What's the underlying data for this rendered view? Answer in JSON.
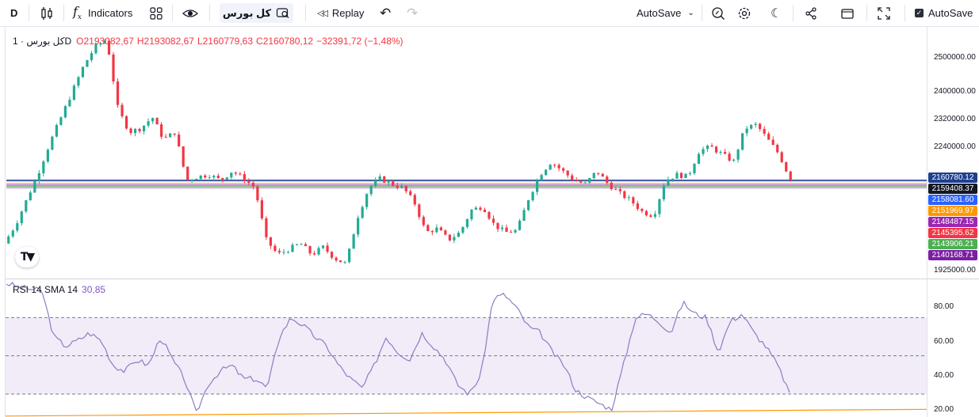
{
  "toolbar": {
    "interval": "D",
    "indicators_label": "Indicators",
    "symbol": "کل بورس",
    "replay_label": "Replay",
    "autosave_dropdown_label": "AutoSave",
    "autosave_checkbox_label": "AutoSave",
    "autosave_checked": true
  },
  "legend": {
    "symbol_interval": "کل بورس · 1D",
    "open": "O2193082,67",
    "high": "H2193082,67",
    "low": "L2160779,63",
    "close": "C2160780,12",
    "change": "−32391,72 (−1,48%)"
  },
  "rsi_legend": {
    "name": "RSI 14 SMA 14",
    "value": "30,85"
  },
  "price_axis": {
    "labels": [
      "2500000.00",
      "2400000.00",
      "2320000.00",
      "2240000.00",
      "1925000.00"
    ]
  },
  "price_tags": [
    {
      "value": "2160780.12",
      "color": "#1e3f8f"
    },
    {
      "value": "2159408.37",
      "color": "#131722"
    },
    {
      "value": "2158081.60",
      "color": "#2962ff"
    },
    {
      "value": "2151969.97",
      "color": "#ff9800"
    },
    {
      "value": "2148487.15",
      "color": "#9c27b0"
    },
    {
      "value": "2145395.62",
      "color": "#f23645"
    },
    {
      "value": "2143906.21",
      "color": "#4caf50"
    },
    {
      "value": "2140168.71",
      "color": "#7b1fa2"
    }
  ],
  "rsi_axis": {
    "labels": [
      "80.00",
      "60.00",
      "40.00",
      "20.00"
    ]
  },
  "colors": {
    "up": "#22ab94",
    "down": "#f23645",
    "rsi_line": "#8e7cc3",
    "rsi_band": "#ede7f6",
    "sma_line": "#ff9800"
  },
  "chart_data": [
    {
      "type": "candlestick",
      "title": "کل بورس · 1D",
      "ylim": [
        1900000,
        2560000
      ],
      "levels": [
        2160780.12,
        2159408.37,
        2158081.6,
        2151969.97,
        2148487.15,
        2145395.62,
        2143906.21,
        2140168.71
      ],
      "close_path": [
        1990000,
        2040000,
        2110000,
        2180000,
        2260000,
        2330000,
        2400000,
        2470000,
        2520000,
        2540000,
        2350000,
        2290000,
        2300000,
        2330000,
        2270000,
        2290000,
        2160000,
        2170000,
        2175000,
        2160000,
        2185000,
        2165000,
        2140000,
        2000000,
        1960000,
        1975000,
        1990000,
        1960000,
        1980000,
        1950000,
        1935000,
        2060000,
        2140000,
        2165000,
        2150000,
        2140000,
        2100000,
        2020000,
        2030000,
        2000000,
        2020000,
        2080000,
        2090000,
        2040000,
        2020000,
        2025000,
        2110000,
        2175000,
        2210000,
        2185000,
        2160000,
        2150000,
        2185000,
        2150000,
        2125000,
        2105000,
        2075000,
        2065000,
        2160000,
        2175000,
        2170000,
        2240000,
        2250000,
        2230000,
        2210000,
        2300000,
        2310000,
        2270000,
        2230000,
        2160780
      ]
    },
    {
      "type": "line",
      "title": "RSI 14 SMA 14",
      "ylim": [
        18,
        90
      ],
      "bands": [
        30,
        50,
        70
      ],
      "series": [
        {
          "name": "RSI 14",
          "values": [
            88,
            86,
            85,
            84,
            60,
            55,
            58,
            62,
            58,
            45,
            42,
            48,
            45,
            60,
            48,
            38,
            20,
            35,
            42,
            45,
            38,
            38,
            33,
            60,
            70,
            66,
            60,
            55,
            45,
            38,
            33,
            45,
            60,
            52,
            48,
            62,
            55,
            48,
            35,
            30,
            40,
            80,
            82,
            75,
            65,
            62,
            52,
            45,
            32,
            28,
            25,
            22,
            45,
            70,
            72,
            68,
            62,
            78,
            72,
            70,
            52,
            68,
            72,
            62,
            55,
            45,
            30.85
          ]
        },
        {
          "name": "SMA 14",
          "values": [
            18.5,
            19,
            19.5,
            20,
            20.5,
            21,
            21.5,
            22
          ]
        }
      ]
    }
  ]
}
